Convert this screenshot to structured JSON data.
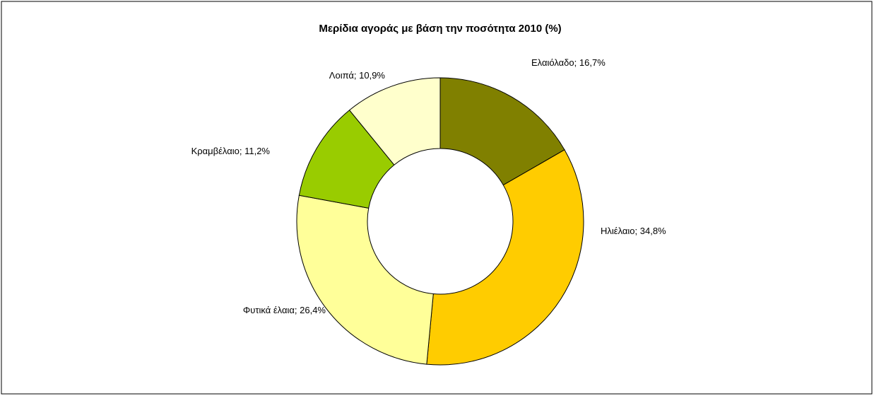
{
  "chart_data": {
    "type": "donut",
    "title": "Μερίδια αγοράς με βάση την ποσότητα 2010 (%)",
    "categories": [
      "Ελαιόλαδο",
      "Ηλιέλαιο",
      "Φυτικά έλαια",
      "Κραμβέλαιο",
      "Λοιπά"
    ],
    "values": [
      16.7,
      34.8,
      26.4,
      11.2,
      10.9
    ],
    "value_labels": [
      "16,7%",
      "34,8%",
      "26,4%",
      "11,2%",
      "10,9%"
    ],
    "label_separator": "; ",
    "colors": [
      "#808000",
      "#ffcc00",
      "#ffff99",
      "#99cc00",
      "#ffffcc"
    ]
  }
}
